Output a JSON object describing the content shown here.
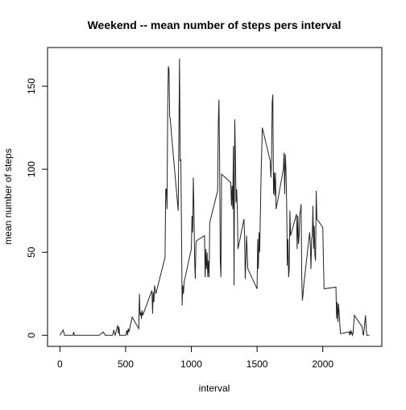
{
  "chart_data": {
    "type": "line",
    "title": "Weekend -- mean number of steps pers interval",
    "x_label": "interval",
    "y_label": "mean number of steps",
    "x": [
      0,
      25,
      35,
      100,
      105,
      110,
      300,
      330,
      345,
      400,
      410,
      420,
      440,
      445,
      450,
      455,
      500,
      510,
      515,
      520,
      525,
      550,
      600,
      605,
      610,
      615,
      620,
      625,
      630,
      700,
      705,
      710,
      715,
      720,
      730,
      800,
      805,
      810,
      815,
      820,
      825,
      830,
      835,
      840,
      850,
      900,
      905,
      910,
      915,
      920,
      925,
      930,
      935,
      940,
      945,
      1000,
      1005,
      1010,
      1015,
      1020,
      1025,
      1030,
      1035,
      1040,
      1100,
      1105,
      1110,
      1115,
      1120,
      1125,
      1130,
      1135,
      1140,
      1200,
      1205,
      1210,
      1215,
      1220,
      1225,
      1230,
      1300,
      1305,
      1310,
      1315,
      1320,
      1325,
      1330,
      1335,
      1340,
      1345,
      1350,
      1355,
      1400,
      1405,
      1410,
      1415,
      1420,
      1430,
      1500,
      1505,
      1510,
      1515,
      1520,
      1530,
      1540,
      1600,
      1605,
      1610,
      1615,
      1620,
      1625,
      1630,
      1635,
      1640,
      1645,
      1700,
      1705,
      1710,
      1715,
      1720,
      1725,
      1730,
      1735,
      1740,
      1745,
      1750,
      1755,
      1800,
      1805,
      1810,
      1815,
      1820,
      1825,
      1830,
      1835,
      1840,
      1845,
      1850,
      1855,
      1900,
      1905,
      1910,
      1915,
      1920,
      1925,
      1930,
      1935,
      1940,
      1945,
      1950,
      1955,
      2000,
      2005,
      2010,
      2100,
      2105,
      2110,
      2115,
      2120,
      2125,
      2130,
      2135,
      2200,
      2205,
      2210,
      2215,
      2220,
      2225,
      2230,
      2240,
      2300,
      2305,
      2310,
      2325,
      2330,
      2335,
      2355
    ],
    "series": [
      {
        "name": "steps",
        "color": "#222222",
        "values": [
          0,
          3.2,
          0,
          0,
          2,
          0,
          0,
          2,
          0,
          0,
          3,
          0,
          6,
          1,
          5,
          0,
          0,
          3,
          0,
          4,
          2,
          11,
          4,
          25,
          12,
          14,
          10,
          15,
          12,
          27,
          13,
          26,
          20,
          30,
          25,
          47,
          88,
          88,
          76,
          137,
          162,
          160,
          132,
          130,
          120,
          75,
          120,
          166.6,
          105,
          106,
          65,
          18,
          30,
          25,
          32,
          52,
          72,
          62,
          95,
          75,
          45,
          34,
          55,
          57,
          60,
          35,
          52,
          40,
          50,
          35,
          45,
          35,
          68,
          87,
          128,
          142,
          105,
          45,
          35,
          97,
          92,
          78,
          90,
          76,
          114,
          30,
          130,
          110,
          80,
          88,
          75,
          52,
          70,
          60,
          34,
          45,
          60,
          40,
          28,
          58,
          40,
          62,
          50,
          95,
          125,
          105,
          95,
          105,
          140,
          145,
          85,
          98,
          84,
          98,
          76,
          100,
          110,
          85,
          109,
          100,
          80,
          42,
          58,
          35,
          40,
          75,
          60,
          73,
          52,
          72,
          55,
          60,
          73,
          75,
          79,
          35,
          21,
          25,
          30,
          62,
          55,
          40,
          58,
          60,
          78,
          52,
          66,
          48,
          45,
          87,
          70,
          65,
          44,
          28,
          29,
          10,
          20,
          8,
          19,
          13,
          6,
          1,
          2,
          0,
          3,
          1,
          2,
          0,
          1,
          12,
          5,
          1,
          0,
          12,
          4,
          0,
          0
        ]
      }
    ],
    "xlim": [
      -94.2,
      2449.2
    ],
    "ylim": [
      -6.66,
      173.3
    ],
    "xticks": [
      0,
      500,
      1000,
      1500,
      2000
    ],
    "yticks": [
      0,
      50,
      100,
      150
    ]
  }
}
